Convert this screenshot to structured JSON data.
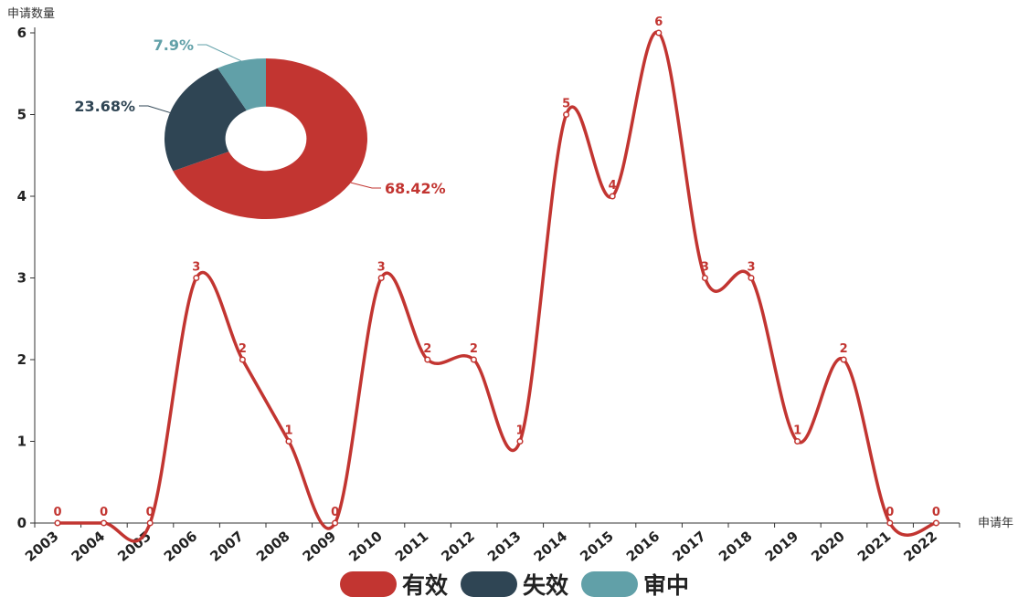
{
  "chart_data": [
    {
      "type": "line",
      "smooth": true,
      "ylabel": "申请数量",
      "xlabel": "申请年",
      "ylim": [
        0,
        6
      ],
      "yticks": [
        0,
        1,
        2,
        3,
        4,
        5,
        6
      ],
      "categories": [
        "2003",
        "2004",
        "2005",
        "2006",
        "2007",
        "2008",
        "2009",
        "2010",
        "2011",
        "2012",
        "2013",
        "2014",
        "2015",
        "2016",
        "2017",
        "2018",
        "2019",
        "2020",
        "2021",
        "2022"
      ],
      "values": [
        0,
        0,
        0,
        3,
        2,
        1,
        0,
        3,
        2,
        2,
        1,
        5,
        4,
        6,
        3,
        3,
        1,
        2,
        0,
        0
      ],
      "color": "#c23531",
      "grid": false
    },
    {
      "type": "pie",
      "donut": true,
      "slices": [
        {
          "name": "有效",
          "value": 68.42,
          "label": "68.42%",
          "color": "#c23531"
        },
        {
          "name": "失效",
          "value": 23.68,
          "label": "23.68%",
          "color": "#2f4554"
        },
        {
          "name": "审中",
          "value": 7.9,
          "label": "7.9%",
          "color": "#61a0a8"
        }
      ]
    }
  ],
  "legend": {
    "placement": "bottom-center",
    "items": [
      {
        "label": "有效",
        "color": "#c23531"
      },
      {
        "label": "失效",
        "color": "#2f4554"
      },
      {
        "label": "审中",
        "color": "#61a0a8"
      }
    ]
  }
}
